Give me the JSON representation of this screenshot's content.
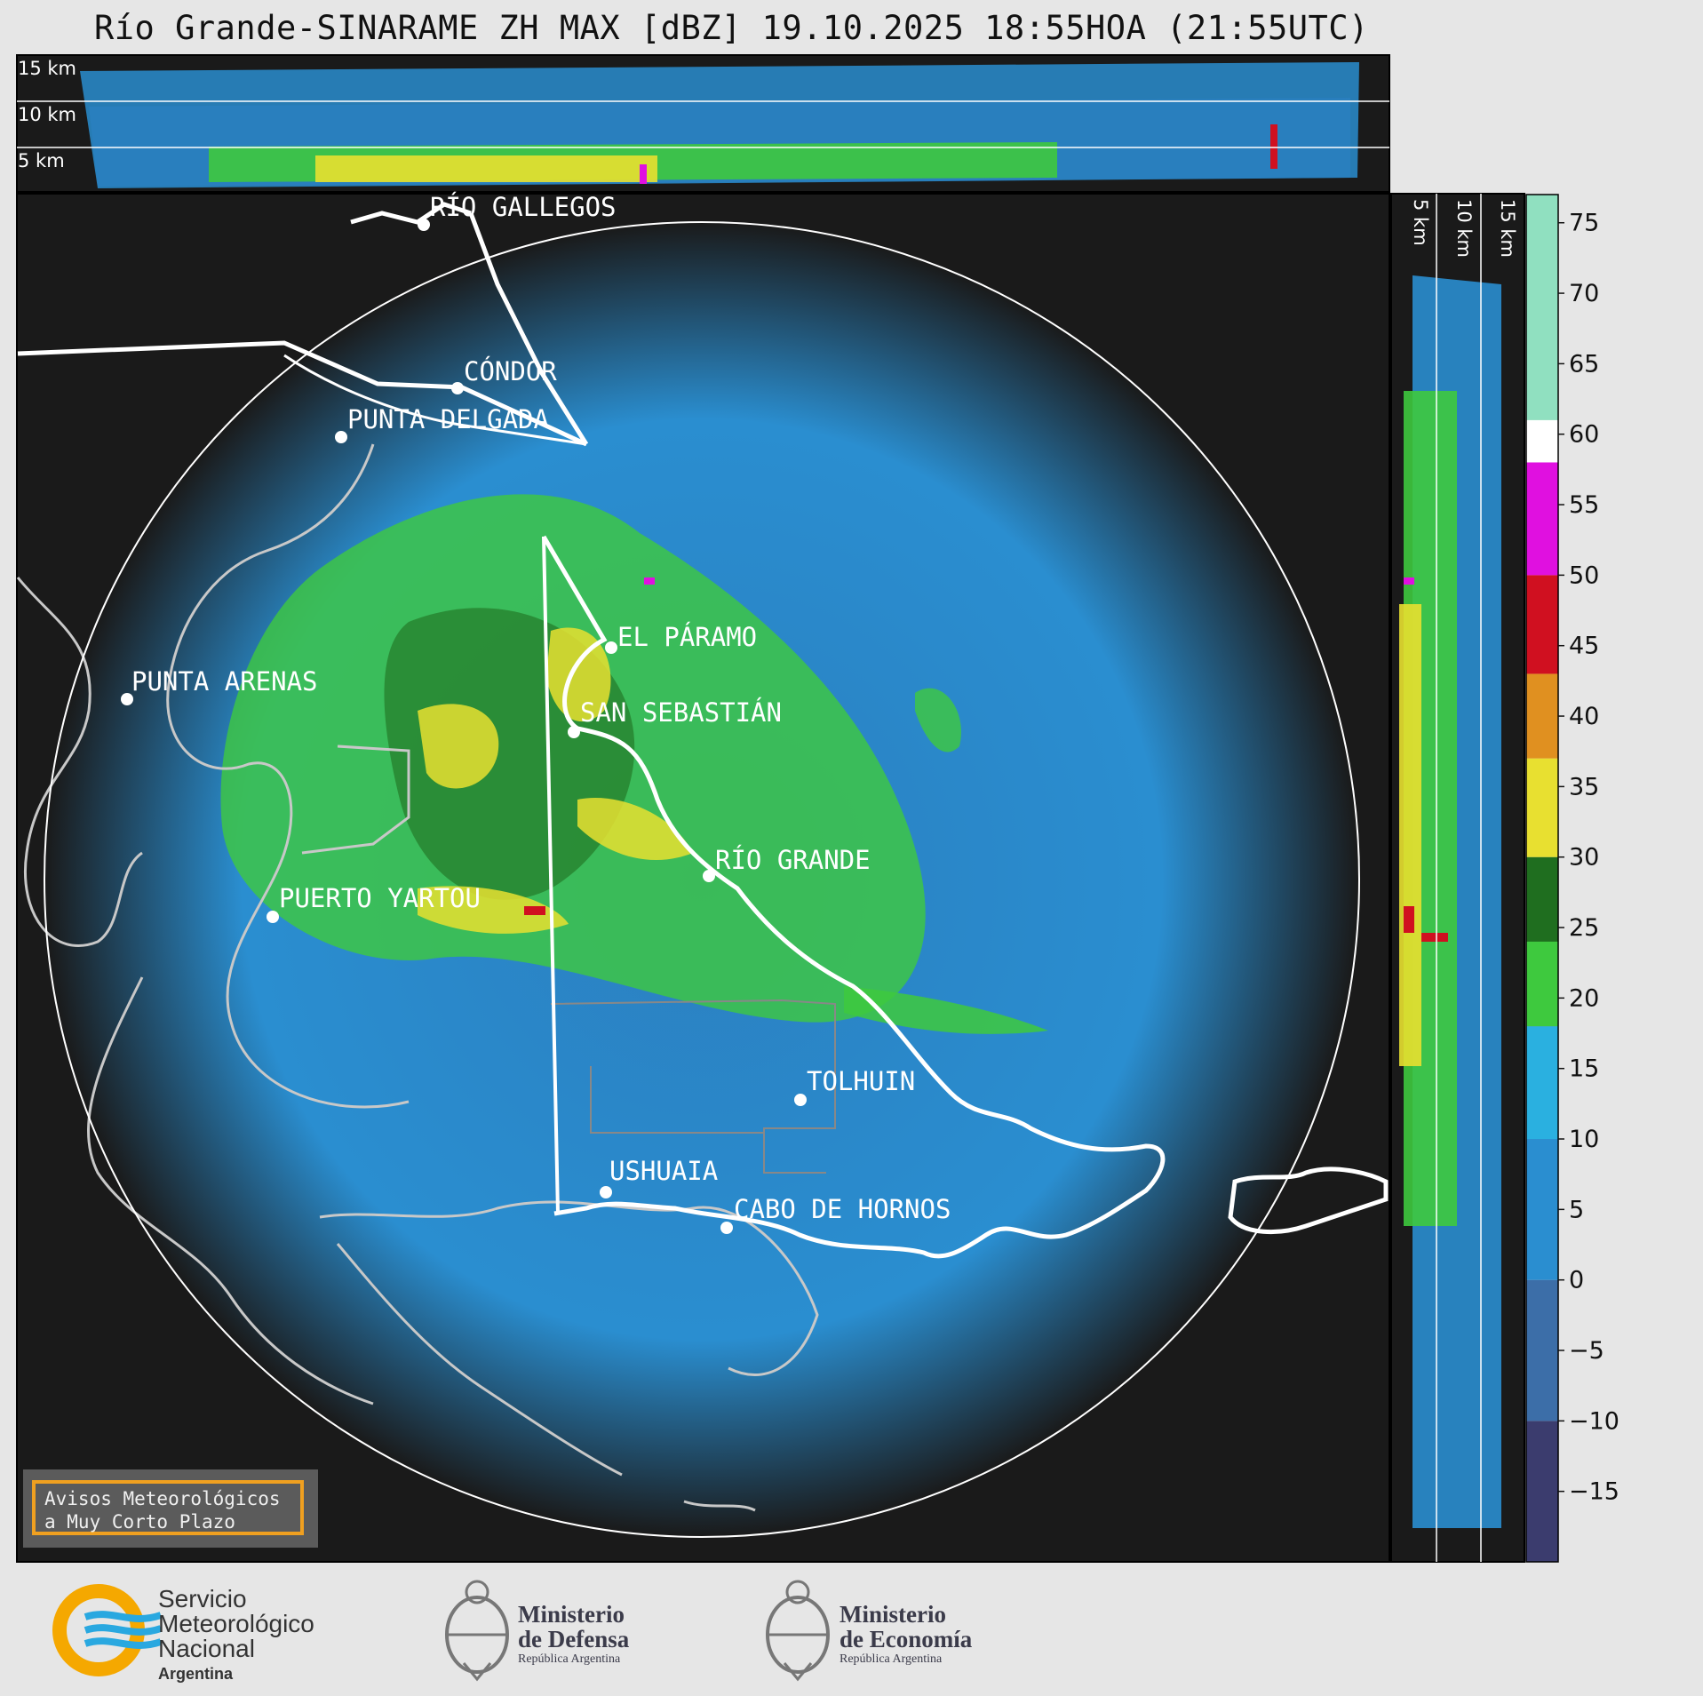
{
  "title": "Río Grande-SINARAME ZH MAX [dBZ] 19.10.2025 18:55HOA (21:55UTC)",
  "top_panel": {
    "labels": [
      "15 km",
      "10 km",
      "5 km"
    ]
  },
  "side_panel": {
    "labels": [
      "5 km",
      "10 km",
      "15 km"
    ]
  },
  "colorbar": {
    "ticks": [
      "75",
      "70",
      "65",
      "60",
      "55",
      "50",
      "45",
      "40",
      "35",
      "30",
      "25",
      "20",
      "15",
      "10",
      "5",
      "0",
      "−5",
      "−10",
      "−15"
    ],
    "colors": {
      "purple_low": "#3b3c6e",
      "blue_low": "#3c6ea8",
      "blue": "#2a8ed0",
      "cyan": "#2ab0e0",
      "green_dark": "#1f6e1f",
      "green": "#3ec93e",
      "yellow": "#e8e030",
      "orange": "#e09020",
      "red": "#d01020",
      "magenta": "#e010e0",
      "white": "#ffffff",
      "mint": "#90e0c0"
    }
  },
  "cities": [
    {
      "name": "RÍO GALLEGOS"
    },
    {
      "name": "CÓNDOR"
    },
    {
      "name": "PUNTA DELGADA"
    },
    {
      "name": "EL PÁRAMO"
    },
    {
      "name": "PUNTA ARENAS"
    },
    {
      "name": "SAN SEBASTIÁN"
    },
    {
      "name": "RÍO GRANDE"
    },
    {
      "name": "PUERTO YARTOU"
    },
    {
      "name": "TOLHUIN"
    },
    {
      "name": "USHUAIA"
    },
    {
      "name": "CABO DE HORNOS"
    }
  ],
  "badge": {
    "line1": "Avisos Meteorológicos",
    "line2": "a Muy Corto Plazo"
  },
  "logos": {
    "smn": {
      "line1": "Servicio",
      "line2": "Meteorológico",
      "line3": "Nacional",
      "line4": "Argentina"
    },
    "defensa": {
      "line1": "Ministerio",
      "line2": "de Defensa",
      "line3": "República Argentina"
    },
    "economia": {
      "line1": "Ministerio",
      "line2": "de Economía",
      "line3": "República Argentina"
    }
  }
}
